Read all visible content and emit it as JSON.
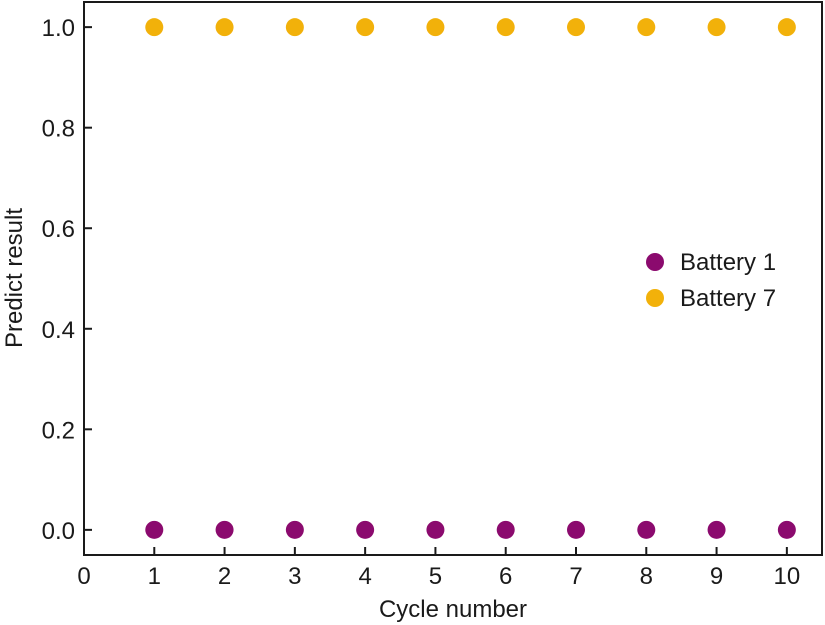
{
  "chart_data": {
    "type": "scatter",
    "xlabel": "Cycle number",
    "ylabel": "Predict result",
    "xlim": [
      0,
      10.5
    ],
    "ylim": [
      -0.05,
      1.05
    ],
    "xticks": [
      "0",
      "1",
      "2",
      "3",
      "4",
      "5",
      "6",
      "7",
      "8",
      "9",
      "10"
    ],
    "yticks": [
      "0.0",
      "0.2",
      "0.4",
      "0.6",
      "0.8",
      "1.0"
    ],
    "grid": false,
    "legend_position": "center-right",
    "series": [
      {
        "name": "Battery 1",
        "color": "#8b0a6e",
        "x": [
          1,
          2,
          3,
          4,
          5,
          6,
          7,
          8,
          9,
          10
        ],
        "y": [
          0,
          0,
          0,
          0,
          0,
          0,
          0,
          0,
          0,
          0
        ]
      },
      {
        "name": "Battery 7",
        "color": "#f2b10a",
        "x": [
          1,
          2,
          3,
          4,
          5,
          6,
          7,
          8,
          9,
          10
        ],
        "y": [
          1,
          1,
          1,
          1,
          1,
          1,
          1,
          1,
          1,
          1
        ]
      }
    ]
  }
}
